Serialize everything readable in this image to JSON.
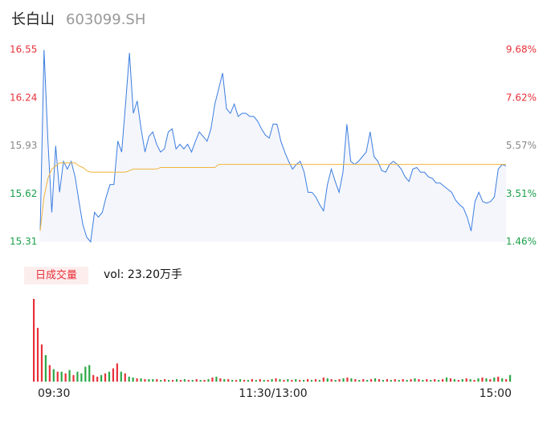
{
  "chart_data": [
    {
      "type": "line",
      "title": "长白山",
      "subtitle": "603099.SH",
      "xlim": [
        0,
        120
      ],
      "xticks": [
        {
          "value": 0,
          "label": "09:30"
        },
        {
          "value": 60,
          "label": "11:30/13:00"
        },
        {
          "value": 120,
          "label": "15:00"
        }
      ],
      "ylim": [
        15.31,
        16.55
      ],
      "yticks": [
        16.55,
        16.24,
        15.93,
        15.62,
        15.31
      ],
      "y2lim": [
        1.46,
        9.68
      ],
      "y2ticks": [
        {
          "value": 9.68,
          "label": "9.68%"
        },
        {
          "value": 7.62,
          "label": "7.62%"
        },
        {
          "value": 5.57,
          "label": "5.57%"
        },
        {
          "value": 3.51,
          "label": "3.51%"
        },
        {
          "value": 1.46,
          "label": "1.46%"
        }
      ],
      "series": [
        {
          "color": "#3b7de0",
          "values": [
            15.38,
            16.55,
            15.96,
            15.5,
            15.93,
            15.63,
            15.83,
            15.78,
            15.83,
            15.73,
            15.57,
            15.42,
            15.34,
            15.31,
            15.5,
            15.47,
            15.5,
            15.6,
            15.68,
            15.68,
            15.96,
            15.89,
            16.2,
            16.53,
            16.14,
            16.22,
            16.04,
            15.89,
            15.99,
            16.02,
            15.94,
            15.89,
            15.91,
            16.02,
            16.04,
            15.91,
            15.94,
            15.91,
            15.94,
            15.89,
            15.96,
            16.02,
            15.99,
            15.96,
            16.04,
            16.2,
            16.3,
            16.4,
            16.17,
            16.14,
            16.2,
            16.12,
            16.14,
            16.14,
            16.12,
            16.12,
            16.09,
            16.04,
            16.0,
            15.98,
            16.07,
            16.07,
            15.96,
            15.89,
            15.83,
            15.78,
            15.81,
            15.83,
            15.76,
            15.63,
            15.63,
            15.6,
            15.55,
            15.51,
            15.68,
            15.78,
            15.7,
            15.63,
            15.76,
            16.07,
            15.83,
            15.81,
            15.83,
            15.86,
            15.89,
            16.02,
            15.86,
            15.83,
            15.77,
            15.76,
            15.81,
            15.83,
            15.81,
            15.78,
            15.73,
            15.7,
            15.78,
            15.79,
            15.76,
            15.76,
            15.73,
            15.72,
            15.69,
            15.69,
            15.67,
            15.65,
            15.63,
            15.58,
            15.55,
            15.53,
            15.47,
            15.38,
            15.57,
            15.63,
            15.57,
            15.56,
            15.57,
            15.6,
            15.78,
            15.81,
            15.8
          ]
        },
        {
          "color": "#f0b43c",
          "values": [
            15.38,
            15.6,
            15.72,
            15.78,
            15.8,
            15.82,
            15.82,
            15.82,
            15.82,
            15.82,
            15.8,
            15.79,
            15.77,
            15.76,
            15.76,
            15.76,
            15.76,
            15.76,
            15.76,
            15.76,
            15.76,
            15.76,
            15.76,
            15.77,
            15.78,
            15.78,
            15.78,
            15.78,
            15.78,
            15.78,
            15.78,
            15.79,
            15.79,
            15.79,
            15.79,
            15.79,
            15.79,
            15.79,
            15.79,
            15.79,
            15.79,
            15.79,
            15.79,
            15.79,
            15.79,
            15.79,
            15.81,
            15.81,
            15.81,
            15.81,
            15.81,
            15.81,
            15.81,
            15.81,
            15.81,
            15.81,
            15.81,
            15.81,
            15.81,
            15.81,
            15.81,
            15.81,
            15.81,
            15.81,
            15.81,
            15.81,
            15.81,
            15.81,
            15.81,
            15.81,
            15.81,
            15.81,
            15.81,
            15.81,
            15.81,
            15.81,
            15.81,
            15.81,
            15.81,
            15.81,
            15.81,
            15.81,
            15.81,
            15.81,
            15.81,
            15.81,
            15.81,
            15.81,
            15.81,
            15.81,
            15.81,
            15.81,
            15.81,
            15.81,
            15.81,
            15.81,
            15.81,
            15.81,
            15.81,
            15.81,
            15.81,
            15.81,
            15.81,
            15.81,
            15.81,
            15.81,
            15.81,
            15.81,
            15.81,
            15.81,
            15.81,
            15.81,
            15.81,
            15.81,
            15.81,
            15.81,
            15.81,
            15.81,
            15.81,
            15.81,
            15.81
          ]
        }
      ]
    },
    {
      "type": "bar",
      "title": "日成交量",
      "annotation": "vol: 23.20万手",
      "ylim": [
        0,
        100
      ],
      "values": [
        100,
        65,
        45,
        32,
        20,
        15,
        12,
        12,
        10,
        14,
        8,
        12,
        10,
        18,
        20,
        8,
        6,
        8,
        10,
        12,
        16,
        22,
        12,
        10,
        6,
        5,
        4,
        4,
        3,
        3,
        3,
        3,
        2,
        3,
        2,
        2,
        3,
        2,
        3,
        2,
        2,
        3,
        2,
        2,
        3,
        5,
        6,
        4,
        3,
        3,
        2,
        2,
        3,
        2,
        2,
        3,
        2,
        3,
        2,
        2,
        3,
        4,
        3,
        2,
        3,
        2,
        3,
        2,
        2,
        3,
        2,
        3,
        2,
        5,
        4,
        3,
        2,
        3,
        4,
        5,
        4,
        3,
        2,
        3,
        2,
        3,
        4,
        3,
        2,
        3,
        2,
        3,
        2,
        3,
        2,
        3,
        4,
        3,
        2,
        3,
        2,
        3,
        2,
        3,
        5,
        4,
        3,
        2,
        3,
        4,
        3,
        2,
        4,
        5,
        4,
        3,
        5,
        6,
        4,
        3,
        8
      ],
      "colors": [
        "#e8313a",
        "#e8313a",
        "#e8313a",
        "#2aa845",
        "#e8313a",
        "#2aa845",
        "#e8313a",
        "#2aa845",
        "#e8313a",
        "#2aa845",
        "#e8313a",
        "#2aa845",
        "#2aa845",
        "#2aa845",
        "#2aa845",
        "#e8313a",
        "#e8313a",
        "#2aa845",
        "#e8313a",
        "#2aa845",
        "#e8313a",
        "#e8313a",
        "#2aa845",
        "#e8313a",
        "#2aa845",
        "#2aa845",
        "#e8313a",
        "#2aa845",
        "#e8313a",
        "#2aa845",
        "#2aa845",
        "#e8313a",
        "#2aa845",
        "#e8313a",
        "#2aa845",
        "#e8313a",
        "#2aa845",
        "#e8313a",
        "#2aa845",
        "#e8313a",
        "#2aa845",
        "#e8313a",
        "#2aa845",
        "#e8313a",
        "#2aa845",
        "#e8313a",
        "#2aa845",
        "#e8313a",
        "#2aa845",
        "#e8313a",
        "#2aa845",
        "#e8313a",
        "#2aa845",
        "#e8313a",
        "#2aa845",
        "#e8313a",
        "#2aa845",
        "#e8313a",
        "#2aa845",
        "#e8313a",
        "#2aa845",
        "#e8313a",
        "#2aa845",
        "#e8313a",
        "#2aa845",
        "#e8313a",
        "#2aa845",
        "#e8313a",
        "#2aa845",
        "#e8313a",
        "#2aa845",
        "#e8313a",
        "#2aa845",
        "#e8313a",
        "#2aa845",
        "#e8313a",
        "#2aa845",
        "#e8313a",
        "#2aa845",
        "#e8313a",
        "#2aa845",
        "#e8313a",
        "#2aa845",
        "#e8313a",
        "#2aa845",
        "#e8313a",
        "#2aa845",
        "#e8313a",
        "#2aa845",
        "#e8313a",
        "#2aa845",
        "#e8313a",
        "#2aa845",
        "#e8313a",
        "#2aa845",
        "#e8313a",
        "#2aa845",
        "#e8313a",
        "#2aa845",
        "#e8313a",
        "#2aa845",
        "#e8313a",
        "#2aa845",
        "#e8313a",
        "#2aa845",
        "#e8313a",
        "#2aa845",
        "#e8313a",
        "#2aa845",
        "#e8313a",
        "#2aa845",
        "#e8313a",
        "#2aa845",
        "#e8313a",
        "#2aa845",
        "#e8313a",
        "#2aa845",
        "#e8313a",
        "#2aa845",
        "#e8313a",
        "#2aa845"
      ]
    }
  ]
}
